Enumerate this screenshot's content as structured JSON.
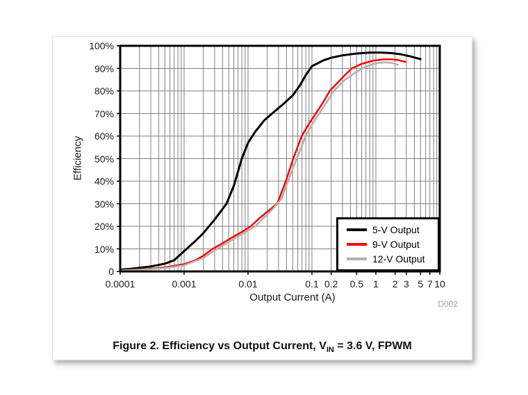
{
  "figure": {
    "caption": {
      "prefix": "Figure 2. Efficiency vs Output Current, V",
      "sub": "IN",
      "suffix": " = 3.6 V, FPWM"
    }
  },
  "chart_data": {
    "type": "line",
    "title": "",
    "xlabel": "Output Current (A)",
    "ylabel": "Efficiency",
    "plot_id": "D002",
    "x_scale": "log",
    "xlim": [
      0.0001,
      10
    ],
    "ylim": [
      0,
      100
    ],
    "grid": "on",
    "grid_color": "#7f7f7f",
    "frame_color": "#000000",
    "legend_position": "lower-right",
    "x_ticks": [
      {
        "value": 0.0001,
        "label": "0.0001"
      },
      {
        "value": 0.001,
        "label": "0.001"
      },
      {
        "value": 0.01,
        "label": "0.01"
      },
      {
        "value": 0.1,
        "label": "0.1"
      },
      {
        "value": 0.2,
        "label": "0.2"
      },
      {
        "value": 0.5,
        "label": "0.5"
      },
      {
        "value": 1,
        "label": "1"
      },
      {
        "value": 2,
        "label": "2"
      },
      {
        "value": 3,
        "label": "3"
      },
      {
        "value": 5,
        "label": "5"
      },
      {
        "value": 7,
        "label": "7"
      },
      {
        "value": 10,
        "label": "10"
      }
    ],
    "y_ticks": [
      {
        "value": 0,
        "label": "0"
      },
      {
        "value": 10,
        "label": "10%"
      },
      {
        "value": 20,
        "label": "20%"
      },
      {
        "value": 30,
        "label": "30%"
      },
      {
        "value": 40,
        "label": "40%"
      },
      {
        "value": 50,
        "label": "50%"
      },
      {
        "value": 60,
        "label": "60%"
      },
      {
        "value": 70,
        "label": "70%"
      },
      {
        "value": 80,
        "label": "80%"
      },
      {
        "value": 90,
        "label": "90%"
      },
      {
        "value": 100,
        "label": "100%"
      }
    ],
    "series": [
      {
        "name": "5-V Output",
        "color": "#000000",
        "width": 3,
        "points": [
          [
            0.0001,
            0.8
          ],
          [
            0.00015,
            1.2
          ],
          [
            0.0002,
            1.6
          ],
          [
            0.0003,
            2.2
          ],
          [
            0.0005,
            3.4
          ],
          [
            0.0007,
            5.0
          ],
          [
            0.001,
            9.0
          ],
          [
            0.0015,
            13.5
          ],
          [
            0.002,
            17.0
          ],
          [
            0.003,
            23.0
          ],
          [
            0.0046,
            30.0
          ],
          [
            0.006,
            38.0
          ],
          [
            0.008,
            50.0
          ],
          [
            0.01,
            57.0
          ],
          [
            0.013,
            62.0
          ],
          [
            0.018,
            67.0
          ],
          [
            0.025,
            70.5
          ],
          [
            0.035,
            74.0
          ],
          [
            0.05,
            78.0
          ],
          [
            0.065,
            82.5
          ],
          [
            0.08,
            87.0
          ],
          [
            0.1,
            91.0
          ],
          [
            0.15,
            93.5
          ],
          [
            0.2,
            94.7
          ],
          [
            0.3,
            95.8
          ],
          [
            0.5,
            96.6
          ],
          [
            0.8,
            97.0
          ],
          [
            1.2,
            97.0
          ],
          [
            1.7,
            96.8
          ],
          [
            2.5,
            96.2
          ],
          [
            3.5,
            95.3
          ],
          [
            5.0,
            94.1
          ]
        ]
      },
      {
        "name": "9-V Output",
        "color": "#fe0000",
        "width": 2.5,
        "points": [
          [
            0.0001,
            0.5
          ],
          [
            0.0002,
            0.9
          ],
          [
            0.0003,
            1.2
          ],
          [
            0.0005,
            1.8
          ],
          [
            0.001,
            3.2
          ],
          [
            0.0015,
            5.0
          ],
          [
            0.002,
            7.0
          ],
          [
            0.0028,
            10.0
          ],
          [
            0.004,
            12.5
          ],
          [
            0.006,
            15.5
          ],
          [
            0.008,
            17.5
          ],
          [
            0.011,
            20.0
          ],
          [
            0.015,
            23.5
          ],
          [
            0.02,
            26.5
          ],
          [
            0.0286,
            30.0
          ],
          [
            0.039,
            40.0
          ],
          [
            0.051,
            50.0
          ],
          [
            0.069,
            60.0
          ],
          [
            0.09,
            65.5
          ],
          [
            0.115,
            70.0
          ],
          [
            0.15,
            75.0
          ],
          [
            0.19,
            80.0
          ],
          [
            0.28,
            85.0
          ],
          [
            0.42,
            90.0
          ],
          [
            0.6,
            92.0
          ],
          [
            0.9,
            93.4
          ],
          [
            1.3,
            94.0
          ],
          [
            1.8,
            94.0
          ],
          [
            2.3,
            93.6
          ],
          [
            2.9,
            92.9
          ]
        ]
      },
      {
        "name": "12-V Output",
        "color": "#b0b0b0",
        "width": 2.5,
        "points": [
          [
            0.0001,
            0.4
          ],
          [
            0.0003,
            1.0
          ],
          [
            0.0005,
            1.5
          ],
          [
            0.001,
            2.7
          ],
          [
            0.002,
            6.0
          ],
          [
            0.0033,
            10.0
          ],
          [
            0.005,
            13.0
          ],
          [
            0.008,
            16.5
          ],
          [
            0.013,
            20.0
          ],
          [
            0.018,
            24.0
          ],
          [
            0.025,
            28.0
          ],
          [
            0.033,
            32.0
          ],
          [
            0.045,
            42.0
          ],
          [
            0.058,
            50.0
          ],
          [
            0.08,
            60.0
          ],
          [
            0.105,
            66.0
          ],
          [
            0.13,
            70.0
          ],
          [
            0.17,
            75.0
          ],
          [
            0.22,
            80.0
          ],
          [
            0.33,
            85.0
          ],
          [
            0.5,
            88.5
          ],
          [
            0.7,
            90.8
          ],
          [
            1.0,
            92.2
          ],
          [
            1.4,
            92.7
          ],
          [
            1.8,
            92.4
          ],
          [
            2.2,
            91.6
          ]
        ]
      }
    ]
  }
}
